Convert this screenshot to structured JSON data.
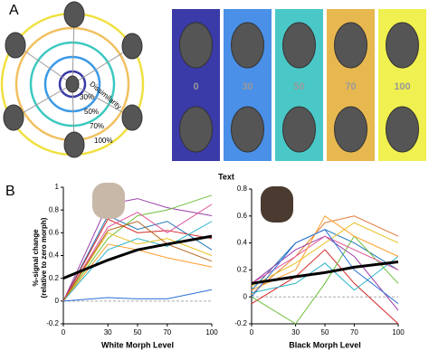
{
  "panel_a": {
    "label": "A",
    "ring_title": "Dissimilarity",
    "ring_labels": [
      "30%",
      "50%",
      "70%",
      "100%"
    ],
    "morph_labels": [
      "0",
      "30",
      "50",
      "70",
      "100"
    ]
  },
  "panel_b": {
    "label": "B",
    "title": "Text",
    "y_label": [
      "%-signal change",
      "(relative to zero morph)"
    ]
  },
  "chart_data": [
    {
      "type": "line",
      "x_label": "White Morph Level",
      "x": [
        0,
        30,
        50,
        70,
        100
      ],
      "xlim": [
        0,
        100
      ],
      "xticks": [
        0,
        30,
        50,
        70,
        100
      ],
      "ylim": [
        -0.2,
        1
      ],
      "yticks": [
        -0.2,
        0,
        0.2,
        0.4,
        0.6,
        0.8,
        1
      ],
      "series": [
        {
          "color": "#1f77b4",
          "values": [
            0,
            0.75,
            0.63,
            0.7,
            0.45
          ]
        },
        {
          "color": "#9b3fa8",
          "values": [
            0,
            0.85,
            0.9,
            0.82,
            0.75
          ]
        },
        {
          "color": "#6cbf3a",
          "values": [
            0,
            0.55,
            0.75,
            0.8,
            0.93
          ]
        },
        {
          "color": "#d62728",
          "values": [
            0,
            0.72,
            0.6,
            0.62,
            0.55
          ]
        },
        {
          "color": "#ff9f2a",
          "values": [
            0,
            0.5,
            0.45,
            0.38,
            0.3
          ]
        },
        {
          "color": "#e0509a",
          "values": [
            0,
            0.65,
            0.78,
            0.6,
            0.85
          ]
        },
        {
          "color": "#2bb5c8",
          "values": [
            0,
            0.45,
            0.55,
            0.48,
            0.7
          ]
        },
        {
          "color": "#e8c020",
          "values": [
            0,
            0.6,
            0.5,
            0.55,
            0.4
          ]
        },
        {
          "color": "#b5651d",
          "values": [
            0,
            0.62,
            0.7,
            0.5,
            0.35
          ]
        },
        {
          "color": "#2a6fd6",
          "values": [
            0,
            0.03,
            0.02,
            0.02,
            0.1
          ]
        },
        {
          "color": "#000000",
          "width": 3,
          "values": [
            0.2,
            0.36,
            0.45,
            0.5,
            0.57
          ]
        }
      ]
    },
    {
      "type": "line",
      "x_label": "Black Morph Level",
      "x": [
        0,
        30,
        50,
        70,
        100
      ],
      "xlim": [
        0,
        100
      ],
      "xticks": [
        0,
        30,
        50,
        70,
        100
      ],
      "ylim": [
        -0.2,
        0.8
      ],
      "yticks": [
        -0.2,
        0,
        0.2,
        0.4,
        0.6,
        0.8
      ],
      "series": [
        {
          "color": "#1f77b4",
          "values": [
            0.05,
            0.4,
            0.5,
            0.4,
            0.2
          ]
        },
        {
          "color": "#e07b39",
          "values": [
            0.02,
            0.3,
            0.55,
            0.6,
            0.45
          ]
        },
        {
          "color": "#9b3fa8",
          "values": [
            0.1,
            0.35,
            0.45,
            0.3,
            -0.1
          ]
        },
        {
          "color": "#e8c020",
          "values": [
            0.08,
            0.25,
            0.4,
            0.55,
            0.4
          ]
        },
        {
          "color": "#d62728",
          "values": [
            -0.05,
            0.15,
            0.35,
            0.1,
            -0.2
          ]
        },
        {
          "color": "#2bb5c8",
          "values": [
            0.03,
            0.1,
            0.25,
            0.05,
            0.3
          ]
        },
        {
          "color": "#6cbf3a",
          "values": [
            0,
            -0.2,
            0.1,
            0.45,
            0.1
          ]
        },
        {
          "color": "#e0509a",
          "values": [
            0.1,
            0.3,
            0.45,
            0.35,
            0.2
          ]
        },
        {
          "color": "#ff9f2a",
          "values": [
            0.05,
            0.2,
            0.6,
            0.45,
            0.3
          ]
        },
        {
          "color": "#2a6fd6",
          "values": [
            0,
            0.4,
            0.5,
            0.2,
            -0.05
          ]
        },
        {
          "color": "#000000",
          "width": 3,
          "values": [
            0.1,
            0.15,
            0.18,
            0.22,
            0.26
          ]
        }
      ]
    }
  ]
}
